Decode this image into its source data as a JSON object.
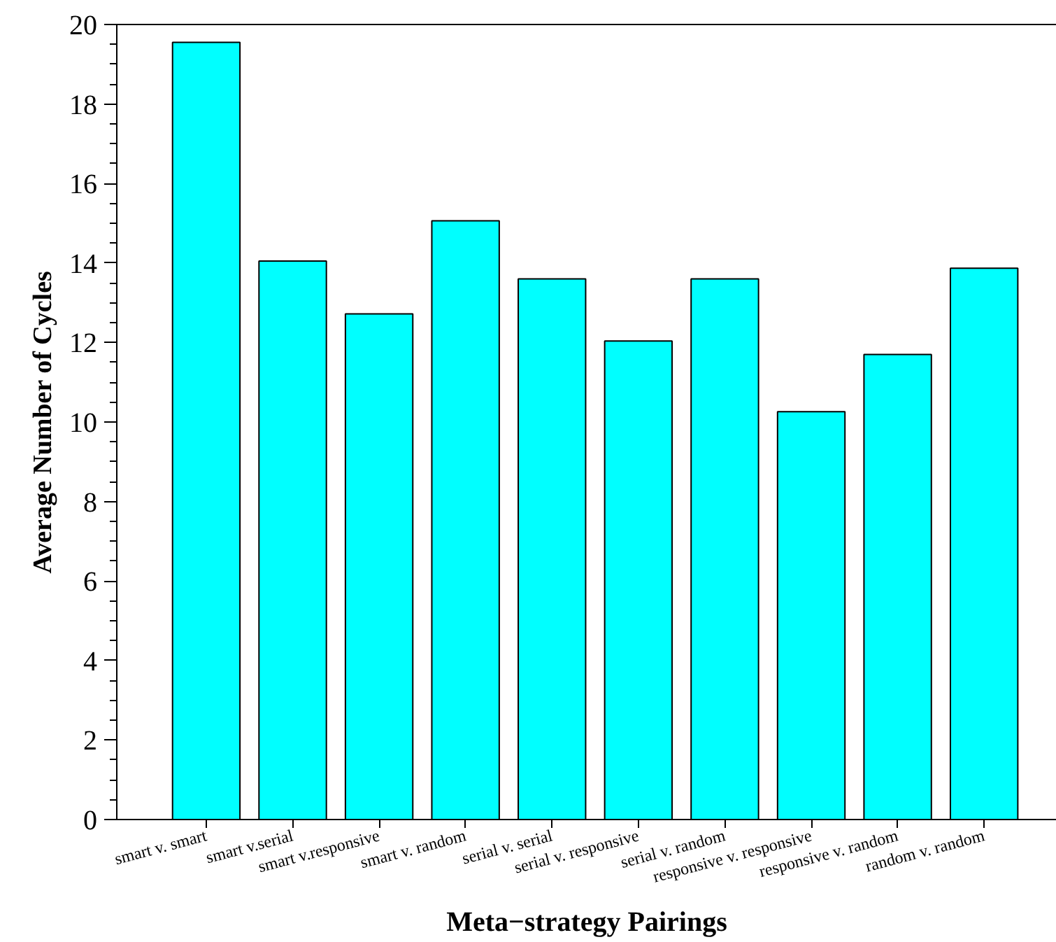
{
  "chart_data": {
    "type": "bar",
    "xlabel": "Meta−strategy Pairings",
    "ylabel": "Average Number of Cycles",
    "categories": [
      "smart v. smart",
      "smart v.serial",
      "smart v.responsive",
      "smart v. random",
      "serial v. serial",
      "serial v. responsive",
      "serial v. random",
      "responsive v. responsive",
      "responsive v. random",
      "random v. random"
    ],
    "values": [
      19.55,
      14.05,
      12.72,
      15.06,
      13.6,
      12.04,
      13.6,
      10.26,
      11.7,
      13.87
    ],
    "color": "#00ffff",
    "ylim": [
      0,
      20
    ],
    "yticks": [
      0,
      2,
      4,
      6,
      8,
      10,
      12,
      14,
      16,
      18,
      20
    ],
    "grid": false
  }
}
